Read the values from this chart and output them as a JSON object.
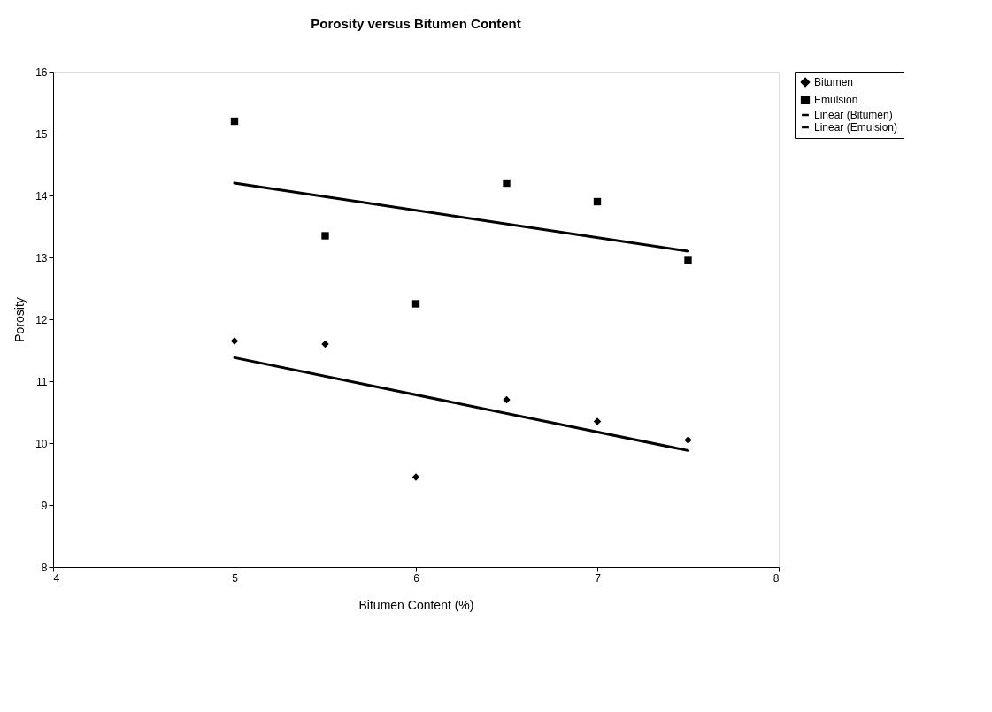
{
  "chart_data": {
    "type": "scatter",
    "title": "Porosity versus Bitumen Content",
    "xlabel": "Bitumen Content (%)",
    "ylabel": "Porosity",
    "xlim": [
      4,
      8
    ],
    "xticks": [
      4,
      5,
      6,
      7,
      8
    ],
    "ylim": [
      8,
      16
    ],
    "yticks": [
      8,
      9,
      10,
      11,
      12,
      13,
      14,
      15,
      16
    ],
    "grid": false,
    "legend": "right",
    "series": [
      {
        "name": "Bitumen",
        "marker": "diamond",
        "color": "#000000",
        "x": [
          5,
          5.5,
          6,
          6.5,
          7,
          7.5
        ],
        "values": [
          11.65,
          11.6,
          9.45,
          10.7,
          10.35,
          10.05
        ]
      },
      {
        "name": "Emulsion",
        "marker": "square",
        "color": "#000000",
        "x": [
          5,
          5.5,
          6,
          6.5,
          7,
          7.5
        ],
        "values": [
          15.2,
          13.35,
          12.25,
          14.2,
          13.9,
          12.95
        ]
      },
      {
        "name": "Linear (Bitumen)",
        "type": "line",
        "line_style": "solid",
        "color": "#000000",
        "x": [
          5,
          7.5
        ],
        "values": [
          11.38,
          9.88
        ]
      },
      {
        "name": "Linear (Emulsion)",
        "type": "line",
        "line_style": "solid",
        "color": "#000000",
        "x": [
          5,
          7.5
        ],
        "values": [
          14.2,
          13.1
        ]
      }
    ]
  }
}
